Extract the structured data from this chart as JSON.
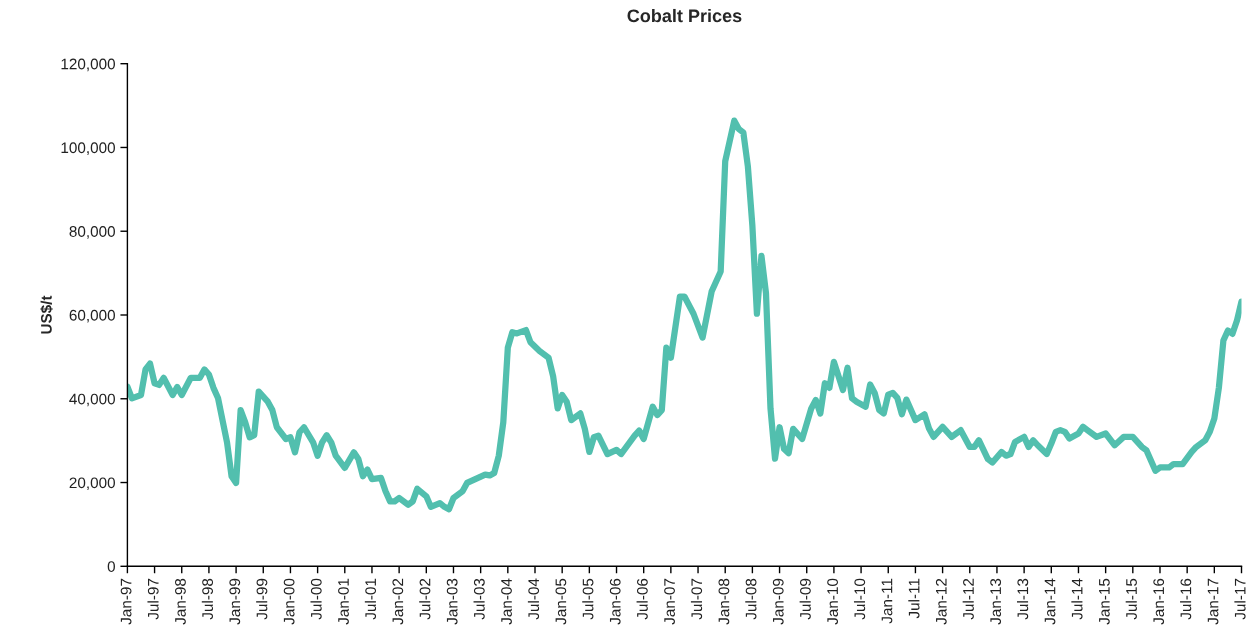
{
  "chart_data": {
    "type": "line",
    "title": "Cobalt Prices",
    "ylabel": "US$/t",
    "x": [
      "1997-01",
      "1997-02",
      "1997-04",
      "1997-05",
      "1997-06",
      "1997-07",
      "1997-08",
      "1997-09",
      "1997-11",
      "1997-12",
      "1998-01",
      "1998-03",
      "1998-05",
      "1998-06",
      "1998-07",
      "1998-08",
      "1998-09",
      "1998-11",
      "1998-12",
      "1999-01",
      "1999-02",
      "1999-03",
      "1999-04",
      "1999-05",
      "1999-06",
      "1999-08",
      "1999-09",
      "1999-10",
      "1999-12",
      "2000-01",
      "2000-02",
      "2000-03",
      "2000-04",
      "2000-06",
      "2000-07",
      "2000-08",
      "2000-09",
      "2000-10",
      "2000-11",
      "2001-01",
      "2001-03",
      "2001-04",
      "2001-05",
      "2001-06",
      "2001-07",
      "2001-09",
      "2001-10",
      "2001-11",
      "2001-12",
      "2002-01",
      "2002-03",
      "2002-04",
      "2002-05",
      "2002-07",
      "2002-08",
      "2002-10",
      "2002-11",
      "2002-12",
      "2003-01",
      "2003-03",
      "2003-04",
      "2003-08",
      "2003-09",
      "2003-10",
      "2003-11",
      "2003-12",
      "2004-01",
      "2004-02",
      "2004-03",
      "2004-05",
      "2004-06",
      "2004-08",
      "2004-10",
      "2004-11",
      "2004-12",
      "2005-01",
      "2005-02",
      "2005-03",
      "2005-05",
      "2005-06",
      "2005-07",
      "2005-08",
      "2005-09",
      "2005-11",
      "2006-01",
      "2006-02",
      "2006-05",
      "2006-06",
      "2006-07",
      "2006-09",
      "2006-10",
      "2006-11",
      "2006-12",
      "2007-01",
      "2007-03",
      "2007-04",
      "2007-06",
      "2007-08",
      "2007-10",
      "2007-12",
      "2008-01",
      "2008-03",
      "2008-04",
      "2008-05",
      "2008-06",
      "2008-07",
      "2008-08",
      "2008-09",
      "2008-10",
      "2008-11",
      "2008-12",
      "2009-01",
      "2009-02",
      "2009-03",
      "2009-04",
      "2009-06",
      "2009-08",
      "2009-09",
      "2009-10",
      "2009-11",
      "2009-12",
      "2010-01",
      "2010-03",
      "2010-04",
      "2010-05",
      "2010-06",
      "2010-08",
      "2010-09",
      "2010-10",
      "2010-11",
      "2010-12",
      "2011-01",
      "2011-02",
      "2011-03",
      "2011-04",
      "2011-05",
      "2011-07",
      "2011-09",
      "2011-10",
      "2011-11",
      "2012-01",
      "2012-03",
      "2012-05",
      "2012-07",
      "2012-08",
      "2012-09",
      "2012-11",
      "2012-12",
      "2013-02",
      "2013-03",
      "2013-04",
      "2013-05",
      "2013-07",
      "2013-08",
      "2013-09",
      "2013-10",
      "2013-12",
      "2014-01",
      "2014-02",
      "2014-03",
      "2014-04",
      "2014-05",
      "2014-07",
      "2014-08",
      "2014-09",
      "2014-11",
      "2015-01",
      "2015-03",
      "2015-05",
      "2015-07",
      "2015-09",
      "2015-10",
      "2015-12",
      "2016-01",
      "2016-03",
      "2016-04",
      "2016-06",
      "2016-08",
      "2016-09",
      "2016-11",
      "2016-12",
      "2017-01",
      "2017-02",
      "2017-03",
      "2017-04",
      "2017-05",
      "2017-06",
      "2017-07"
    ],
    "series": [
      {
        "color": "#52bfae",
        "values": [
          42900,
          40100,
          40900,
          47000,
          48400,
          43700,
          43300,
          45000,
          40900,
          42800,
          40900,
          45000,
          45000,
          47000,
          45800,
          42600,
          40200,
          29600,
          21500,
          19900,
          37300,
          34400,
          30800,
          31300,
          41700,
          39300,
          37300,
          33200,
          30400,
          30800,
          27200,
          32000,
          33200,
          29600,
          26400,
          29600,
          31300,
          29600,
          26400,
          23500,
          27200,
          25600,
          21500,
          23100,
          20800,
          21100,
          17900,
          15500,
          15500,
          16300,
          14700,
          15500,
          18500,
          16700,
          14200,
          15100,
          14200,
          13600,
          16300,
          17900,
          19900,
          21900,
          21700,
          22300,
          26400,
          34400,
          52200,
          55900,
          55600,
          56400,
          53500,
          51400,
          49800,
          45400,
          37700,
          40900,
          39300,
          34900,
          36500,
          32800,
          27300,
          30800,
          31200,
          26800,
          27800,
          26800,
          31200,
          32400,
          30400,
          38100,
          36100,
          37300,
          52200,
          49800,
          64400,
          64400,
          60300,
          54600,
          65600,
          70400,
          96700,
          106400,
          104400,
          103600,
          95500,
          81300,
          60300,
          74100,
          65200,
          37700,
          25700,
          33200,
          28000,
          27000,
          32800,
          30400,
          37700,
          39700,
          36500,
          43700,
          42600,
          48800,
          42100,
          47400,
          40100,
          39300,
          38100,
          43400,
          41400,
          37300,
          36500,
          41000,
          41400,
          40200,
          36300,
          39800,
          34900,
          36300,
          32900,
          30900,
          33300,
          30900,
          32500,
          28500,
          28500,
          30100,
          25600,
          24800,
          27300,
          26400,
          26800,
          29700,
          30900,
          28500,
          30100,
          28900,
          26800,
          29300,
          32100,
          32500,
          32100,
          30500,
          31700,
          33300,
          32500,
          30900,
          31700,
          28900,
          30900,
          30900,
          28500,
          27700,
          22800,
          23600,
          23600,
          24400,
          24400,
          27300,
          28500,
          30100,
          32100,
          35300,
          42600,
          53900,
          56300,
          55500,
          58700,
          63200
        ]
      }
    ],
    "xlim": [
      "1997-01",
      "2017-07"
    ],
    "xticks": [
      {
        "value": "1997-01",
        "label": "Jan-97"
      },
      {
        "value": "1997-07",
        "label": "Jul-97"
      },
      {
        "value": "1998-01",
        "label": "Jan-98"
      },
      {
        "value": "1998-07",
        "label": "Jul-98"
      },
      {
        "value": "1999-01",
        "label": "Jan-99"
      },
      {
        "value": "1999-07",
        "label": "Jul-99"
      },
      {
        "value": "2000-01",
        "label": "Jan-00"
      },
      {
        "value": "2000-07",
        "label": "Jul-00"
      },
      {
        "value": "2001-01",
        "label": "Jan-01"
      },
      {
        "value": "2001-07",
        "label": "Jul-01"
      },
      {
        "value": "2002-01",
        "label": "Jan-02"
      },
      {
        "value": "2002-07",
        "label": "Jul-02"
      },
      {
        "value": "2003-01",
        "label": "Jan-03"
      },
      {
        "value": "2003-07",
        "label": "Jul-03"
      },
      {
        "value": "2004-01",
        "label": "Jan-04"
      },
      {
        "value": "2004-07",
        "label": "Jul-04"
      },
      {
        "value": "2005-01",
        "label": "Jan-05"
      },
      {
        "value": "2005-07",
        "label": "Jul-05"
      },
      {
        "value": "2006-01",
        "label": "Jan-06"
      },
      {
        "value": "2006-07",
        "label": "Jul-06"
      },
      {
        "value": "2007-01",
        "label": "Jan-07"
      },
      {
        "value": "2007-07",
        "label": "Jul-07"
      },
      {
        "value": "2008-01",
        "label": "Jan-08"
      },
      {
        "value": "2008-07",
        "label": "Jul-08"
      },
      {
        "value": "2009-01",
        "label": "Jan-09"
      },
      {
        "value": "2009-07",
        "label": "Jul-09"
      },
      {
        "value": "2010-01",
        "label": "Jan-10"
      },
      {
        "value": "2010-07",
        "label": "Jul-10"
      },
      {
        "value": "2011-01",
        "label": "Jan-11"
      },
      {
        "value": "2011-07",
        "label": "Jul-11"
      },
      {
        "value": "2012-01",
        "label": "Jan-12"
      },
      {
        "value": "2012-07",
        "label": "Jul-12"
      },
      {
        "value": "2013-01",
        "label": "Jan-13"
      },
      {
        "value": "2013-07",
        "label": "Jul-13"
      },
      {
        "value": "2014-01",
        "label": "Jan-14"
      },
      {
        "value": "2014-07",
        "label": "Jul-14"
      },
      {
        "value": "2015-01",
        "label": "Jan-15"
      },
      {
        "value": "2015-07",
        "label": "Jul-15"
      },
      {
        "value": "2016-01",
        "label": "Jan-16"
      },
      {
        "value": "2016-07",
        "label": "Jul-16"
      },
      {
        "value": "2017-01",
        "label": "Jan-17"
      },
      {
        "value": "2017-07",
        "label": "Jul-17"
      }
    ],
    "ylim": [
      0,
      120000
    ],
    "yticks": [
      0,
      {
        "value": 20000,
        "label": "20,000"
      },
      {
        "value": 40000,
        "label": "40,000"
      },
      {
        "value": 60000,
        "label": "60,000"
      },
      {
        "value": 80000,
        "label": "80,000"
      },
      {
        "value": 100000,
        "label": "100,000"
      },
      {
        "value": 120000,
        "label": "120,000"
      }
    ],
    "grid": false,
    "legend": false,
    "marker": "none",
    "line_style": "solid"
  }
}
